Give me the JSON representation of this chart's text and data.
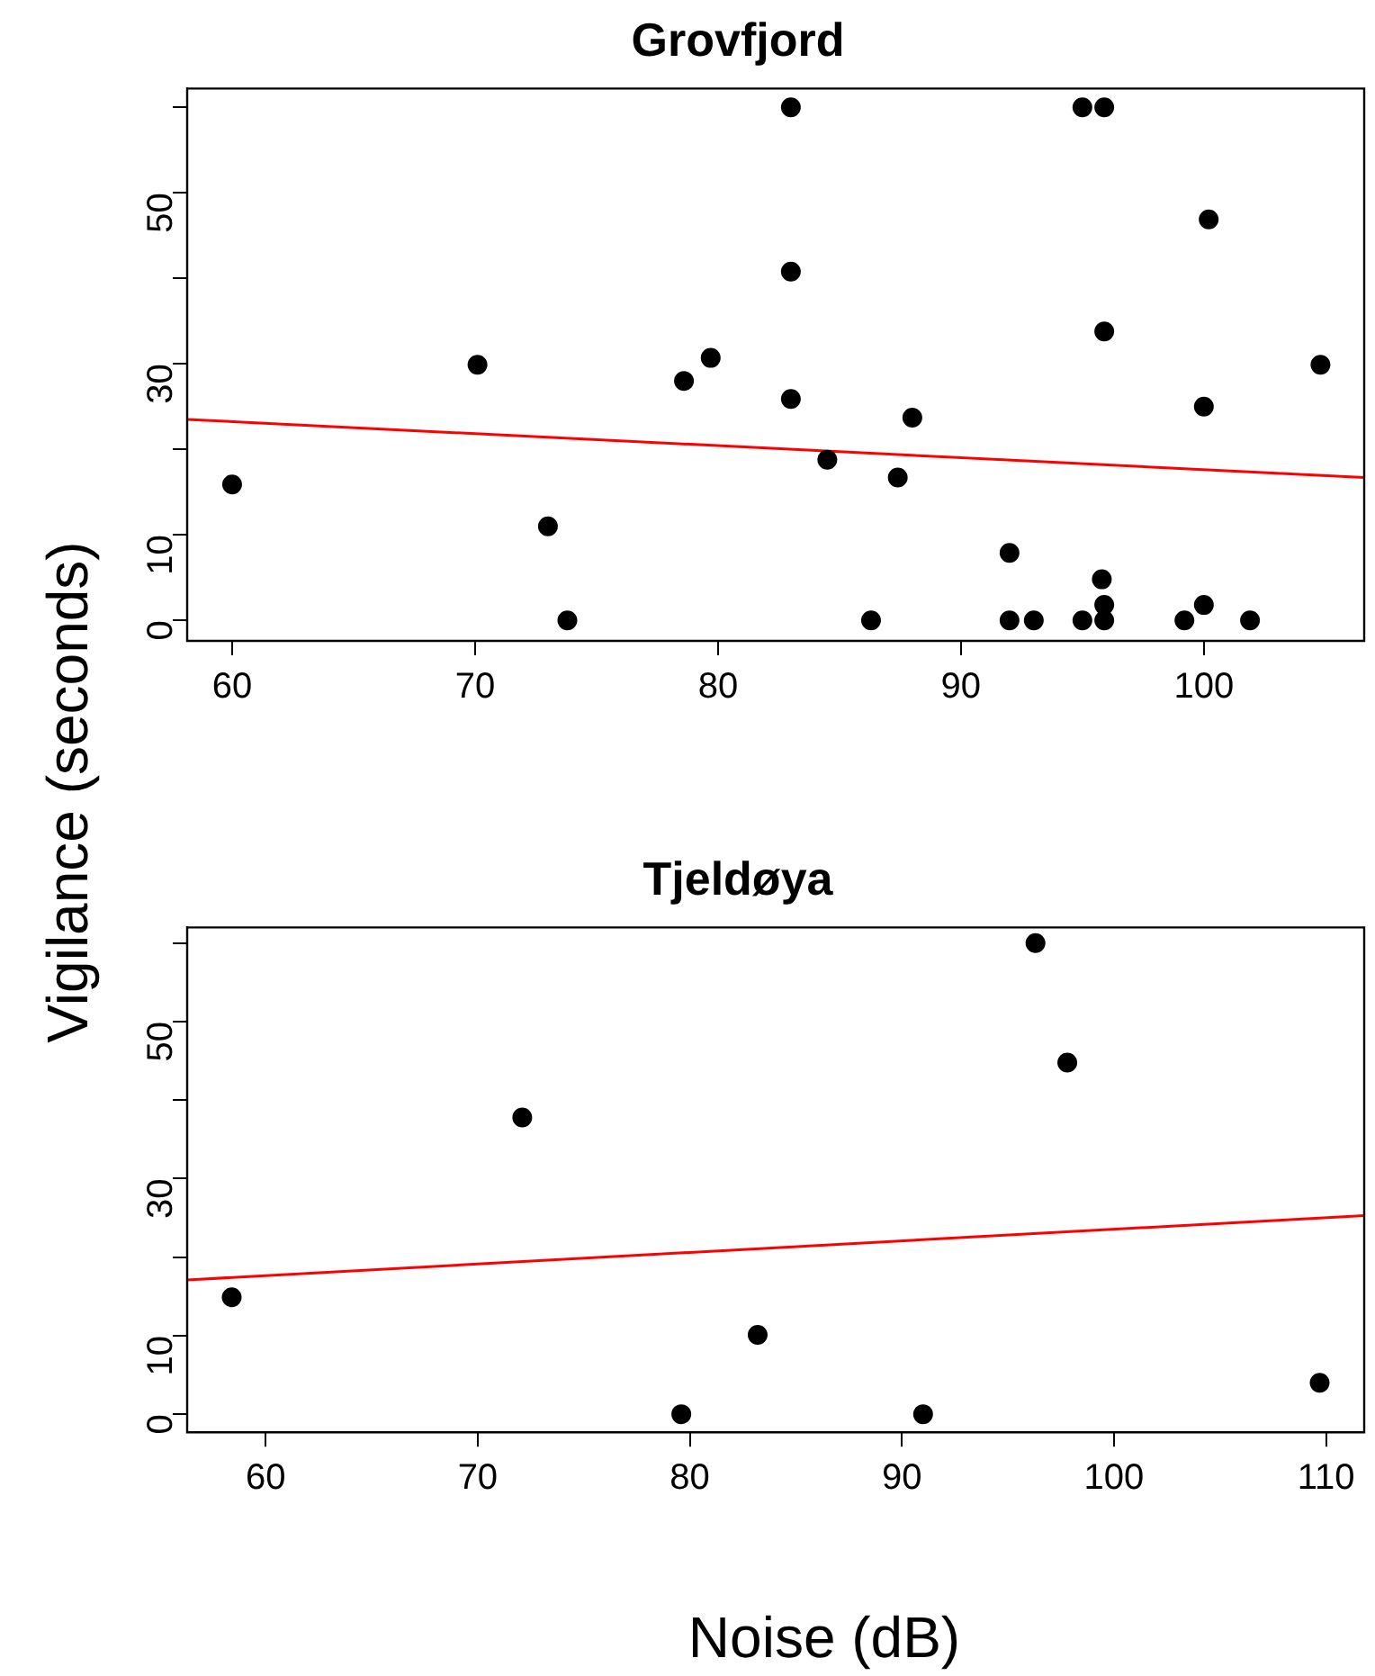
{
  "chart_data": [
    {
      "type": "scatter",
      "title": "Grovfjord",
      "ylabel": "Vigilance (seconds)",
      "marker": "circle",
      "grid": false,
      "legend": false,
      "xlim": [
        58.15,
        106.6
      ],
      "ylim": [
        -2.4,
        62.2
      ],
      "xticks": [
        60,
        70,
        80,
        90,
        100
      ],
      "yticks": [
        0,
        10,
        {
          "value": 20,
          "label": null
        },
        30,
        {
          "value": 40,
          "label": null
        },
        50,
        {
          "value": 60,
          "label": null
        }
      ],
      "series": [
        {
          "color": "#000000",
          "x": [
            60,
            70.1,
            73.0,
            73.8,
            78.6,
            79.7,
            83.0,
            83.0,
            83.0,
            84.5,
            86.3,
            87.4,
            88.0,
            92.0,
            92.0,
            93.0,
            95.0,
            95.0,
            95.9,
            95.9,
            95.8,
            95.9,
            95.9,
            100.2,
            100,
            99.2,
            100,
            101.9,
            104.8
          ],
          "values": [
            15.9,
            29.9,
            11.0,
            0,
            28.0,
            30.7,
            60,
            40.8,
            25.9,
            18.8,
            0,
            16.7,
            23.7,
            7.9,
            0,
            0,
            60,
            0,
            60,
            33.8,
            4.8,
            1.8,
            0,
            46.9,
            25.0,
            0,
            1.8,
            0,
            29.9
          ]
        },
        {
          "type": "line",
          "color": "#ff0000",
          "marker": "none",
          "x": [
            58.15,
            106.6
          ],
          "values": [
            23.5,
            16.7
          ]
        }
      ]
    },
    {
      "type": "scatter",
      "title": "Tjeldøya",
      "xlabel": "Noise (dB)",
      "marker": "circle",
      "grid": false,
      "legend": false,
      "xlim": [
        56.3,
        111.8
      ],
      "ylim": [
        -2.3,
        62.0
      ],
      "xticks": [
        60,
        70,
        80,
        90,
        100,
        110
      ],
      "yticks": [
        0,
        10,
        {
          "value": 20,
          "label": null
        },
        30,
        {
          "value": 40,
          "label": null
        },
        50,
        {
          "value": 60,
          "label": null
        }
      ],
      "series": [
        {
          "color": "#000000",
          "x": [
            58.4,
            72.1,
            79.6,
            83.2,
            91.0,
            96.3,
            97.8,
            109.7
          ],
          "values": [
            14.9,
            37.8,
            0,
            10.1,
            0,
            60,
            44.8,
            4.0
          ]
        },
        {
          "type": "line",
          "color": "#ff0000",
          "marker": "none",
          "x": [
            56.3,
            111.8
          ],
          "values": [
            17.1,
            25.3
          ]
        }
      ]
    }
  ]
}
